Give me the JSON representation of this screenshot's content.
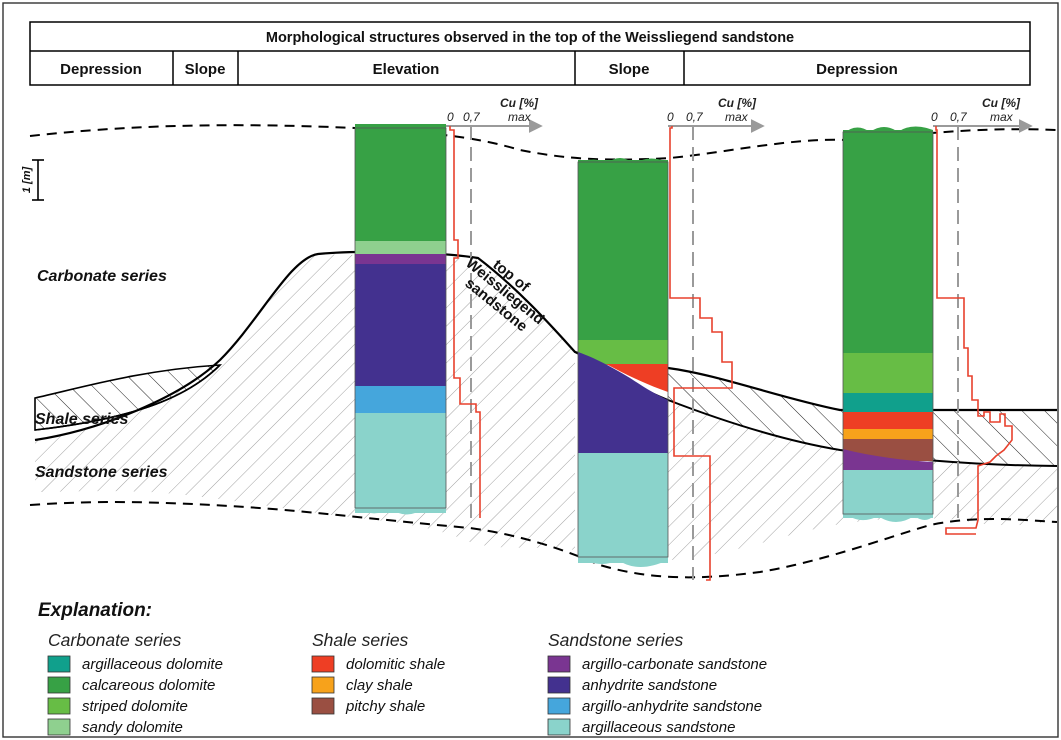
{
  "header": {
    "title": "Morphological structures observed in the top of the Weissliegend sandstone",
    "cells": [
      "Depression",
      "Slope",
      "Elevation",
      "Slope",
      "Depression"
    ]
  },
  "scale": {
    "label": "1 [m]"
  },
  "series_labels": {
    "carbonate": "Carbonate series",
    "shale": "Shale series",
    "sandstone": "Sandstone series"
  },
  "top_label": [
    "top of",
    "Weissliegend",
    "sandstone"
  ],
  "cu_axis": {
    "title": "Cu [%]",
    "ticks": [
      "0",
      "0,7",
      "max"
    ]
  },
  "colors": {
    "argillaceous_dolomite": "#10a08c",
    "calcareous_dolomite": "#37a145",
    "striped_dolomite": "#67bd45",
    "sandy_dolomite": "#8fd08f",
    "dolomitic_shale": "#ee3e24",
    "clay_shale": "#f7a21b",
    "pitchy_shale": "#9a4f42",
    "argillo_carbonate_sandstone": "#7a3591",
    "anhydrite_sandstone": "#43318f",
    "argillo_anhydrite_sandstone": "#45a6dc",
    "argillaceous_sandstone": "#8ad3cb",
    "cu_line": "#e8412d"
  },
  "explanation": {
    "title": "Explanation:",
    "groups": [
      {
        "title": "Carbonate series",
        "items": [
          {
            "label": "argillaceous dolomite",
            "color": "#10a08c"
          },
          {
            "label": "calcareous dolomite",
            "color": "#37a145"
          },
          {
            "label": "striped dolomite",
            "color": "#67bd45"
          },
          {
            "label": "sandy dolomite",
            "color": "#8fd08f"
          }
        ]
      },
      {
        "title": "Shale series",
        "items": [
          {
            "label": "dolomitic shale",
            "color": "#ee3e24"
          },
          {
            "label": "clay shale",
            "color": "#f7a21b"
          },
          {
            "label": "pitchy shale",
            "color": "#9a4f42"
          }
        ]
      },
      {
        "title": "Sandstone series",
        "items": [
          {
            "label": "argillo-carbonate sandstone",
            "color": "#7a3591"
          },
          {
            "label": "anhydrite sandstone",
            "color": "#43318f"
          },
          {
            "label": "argillo-anhydrite sandstone",
            "color": "#45a6dc"
          },
          {
            "label": "argillaceous sandstone",
            "color": "#8ad3cb"
          }
        ]
      }
    ]
  }
}
